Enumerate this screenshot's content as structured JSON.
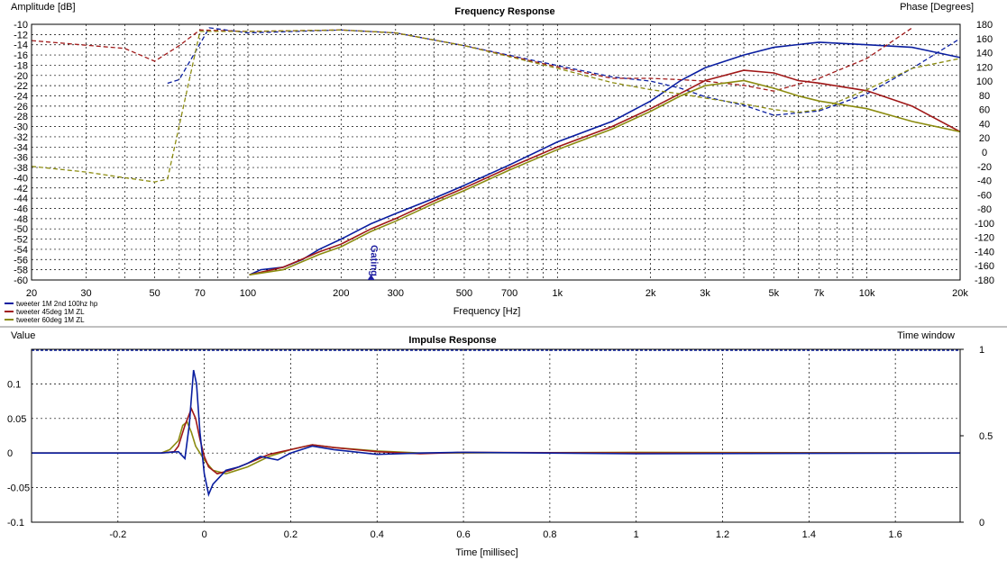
{
  "colors": {
    "series_blue": "#0a1ea0",
    "series_red": "#a01818",
    "series_olive": "#8c8c10",
    "grid": "#000000",
    "divider": "#808080",
    "gating_marker": "#1e1ea0"
  },
  "chart_data": [
    {
      "type": "line",
      "title": "Frequency Response",
      "xlabel": "Frequency [Hz]",
      "ylabel_left": "Amplitude [dB]",
      "ylabel_right": "Phase [Degrees]",
      "xscale": "log",
      "xlim": [
        20,
        20000
      ],
      "ylim_left": [
        -60,
        -10
      ],
      "ylim_right": [
        -180,
        180
      ],
      "grid": true,
      "legend_position": "bottom-left",
      "x_ticks": [
        20,
        30,
        50,
        70,
        100,
        200,
        300,
        500,
        700,
        1000,
        2000,
        3000,
        5000,
        7000,
        10000,
        20000
      ],
      "x_tick_labels": [
        "20",
        "30",
        "50",
        "70",
        "100",
        "200",
        "300",
        "500",
        "700",
        "1k",
        "2k",
        "3k",
        "5k",
        "7k",
        "10k",
        "20k"
      ],
      "y_left_ticks": [
        -10,
        -12,
        -14,
        -16,
        -18,
        -20,
        -22,
        -24,
        -26,
        -28,
        -30,
        -32,
        -34,
        -36,
        -38,
        -40,
        -42,
        -44,
        -46,
        -48,
        -50,
        -52,
        -54,
        -56,
        -58,
        -60
      ],
      "y_right_ticks": [
        180,
        160,
        140,
        120,
        100,
        80,
        60,
        40,
        20,
        0,
        -20,
        -40,
        -60,
        -80,
        -100,
        -120,
        -140,
        -160,
        -180
      ],
      "annotation": {
        "text": "Gating",
        "x": 250
      },
      "series": [
        {
          "name": "tweeter 1M 2nd 100hz hp",
          "color": "#0a1ea0",
          "amplitude": [
            [
              101,
              -59
            ],
            [
              110,
              -58
            ],
            [
              130,
              -57.5
            ],
            [
              150,
              -56
            ],
            [
              170,
              -54
            ],
            [
              200,
              -52
            ],
            [
              250,
              -49
            ],
            [
              300,
              -47
            ],
            [
              400,
              -44
            ],
            [
              500,
              -41.5
            ],
            [
              700,
              -37.5
            ],
            [
              1000,
              -33
            ],
            [
              1500,
              -29
            ],
            [
              2000,
              -25
            ],
            [
              2500,
              -21
            ],
            [
              3000,
              -18.5
            ],
            [
              4000,
              -16
            ],
            [
              5000,
              -14.5
            ],
            [
              7000,
              -13.5
            ],
            [
              10000,
              -14
            ],
            [
              14000,
              -14.5
            ],
            [
              20000,
              -16.5
            ]
          ],
          "phase": [
            [
              55,
              97
            ],
            [
              60,
              102
            ],
            [
              75,
              175
            ],
            [
              100,
              168
            ],
            [
              200,
              172
            ],
            [
              300,
              168
            ],
            [
              500,
              150
            ],
            [
              1000,
              122
            ],
            [
              1500,
              106
            ],
            [
              2000,
              100
            ],
            [
              2500,
              90
            ],
            [
              3000,
              78
            ],
            [
              4000,
              66
            ],
            [
              5000,
              52
            ],
            [
              7000,
              58
            ],
            [
              10000,
              82
            ],
            [
              14000,
              118
            ],
            [
              20000,
              160
            ]
          ],
          "impulse": [
            [
              -0.2,
              0
            ],
            [
              -0.1,
              0
            ],
            [
              -0.06,
              0.002
            ],
            [
              -0.045,
              -0.008
            ],
            [
              -0.035,
              0.04
            ],
            [
              -0.025,
              0.12
            ],
            [
              -0.018,
              0.1
            ],
            [
              -0.01,
              0.03
            ],
            [
              0.0,
              -0.03
            ],
            [
              0.01,
              -0.06
            ],
            [
              0.02,
              -0.045
            ],
            [
              0.05,
              -0.025
            ],
            [
              0.08,
              -0.02
            ],
            [
              0.1,
              -0.015
            ],
            [
              0.13,
              -0.005
            ],
            [
              0.17,
              -0.01
            ],
            [
              0.2,
              0.0
            ],
            [
              0.25,
              0.01
            ],
            [
              0.3,
              0.005
            ],
            [
              0.4,
              -0.002
            ],
            [
              0.5,
              0
            ],
            [
              0.6,
              0.001
            ],
            [
              1.0,
              -0.001
            ],
            [
              1.75,
              0
            ]
          ]
        },
        {
          "name": "tweeter 45deg 1M ZL",
          "color": "#a01818",
          "amplitude": [
            [
              101,
              -59
            ],
            [
              130,
              -57.5
            ],
            [
              170,
              -54.5
            ],
            [
              200,
              -53
            ],
            [
              250,
              -50
            ],
            [
              300,
              -48
            ],
            [
              400,
              -44.5
            ],
            [
              500,
              -42
            ],
            [
              700,
              -38
            ],
            [
              1000,
              -34
            ],
            [
              1500,
              -30
            ],
            [
              2000,
              -26.5
            ],
            [
              2500,
              -23.5
            ],
            [
              3000,
              -21
            ],
            [
              4000,
              -19
            ],
            [
              5000,
              -19.5
            ],
            [
              6000,
              -21
            ],
            [
              7000,
              -21.5
            ],
            [
              10000,
              -23
            ],
            [
              14000,
              -26
            ],
            [
              20000,
              -31
            ]
          ],
          "phase": [
            [
              20,
              157
            ],
            [
              40,
              146
            ],
            [
              50,
              128
            ],
            [
              60,
              150
            ],
            [
              70,
              172
            ],
            [
              100,
              170
            ],
            [
              200,
              172
            ],
            [
              300,
              168
            ],
            [
              500,
              150
            ],
            [
              1000,
              120
            ],
            [
              1500,
              104
            ],
            [
              2000,
              104
            ],
            [
              2500,
              102
            ],
            [
              3000,
              100
            ],
            [
              4000,
              94
            ],
            [
              5000,
              86
            ],
            [
              7000,
              104
            ],
            [
              10000,
              132
            ],
            [
              14000,
              175
            ]
          ],
          "impulse": [
            [
              -0.2,
              0
            ],
            [
              -0.1,
              0
            ],
            [
              -0.07,
              0.002
            ],
            [
              -0.06,
              0.01
            ],
            [
              -0.045,
              0.04
            ],
            [
              -0.03,
              0.064
            ],
            [
              -0.02,
              0.05
            ],
            [
              -0.01,
              0.02
            ],
            [
              0.0,
              -0.005
            ],
            [
              0.01,
              -0.02
            ],
            [
              0.03,
              -0.03
            ],
            [
              0.06,
              -0.025
            ],
            [
              0.1,
              -0.015
            ],
            [
              0.15,
              -0.002
            ],
            [
              0.2,
              0.005
            ],
            [
              0.25,
              0.012
            ],
            [
              0.3,
              0.008
            ],
            [
              0.4,
              0.002
            ],
            [
              0.5,
              -0.001
            ],
            [
              0.6,
              0.001
            ],
            [
              1.0,
              0
            ],
            [
              1.75,
              0
            ]
          ]
        },
        {
          "name": "tweeter 60deg 1M ZL",
          "color": "#8c8c10",
          "amplitude": [
            [
              101,
              -59
            ],
            [
              130,
              -58
            ],
            [
              170,
              -55
            ],
            [
              200,
              -53.5
            ],
            [
              250,
              -50.5
            ],
            [
              300,
              -48.5
            ],
            [
              400,
              -45
            ],
            [
              500,
              -42.5
            ],
            [
              700,
              -38.5
            ],
            [
              1000,
              -34.5
            ],
            [
              1500,
              -30.5
            ],
            [
              2000,
              -27
            ],
            [
              2500,
              -24
            ],
            [
              3000,
              -22
            ],
            [
              4000,
              -21
            ],
            [
              5000,
              -22.5
            ],
            [
              6000,
              -24
            ],
            [
              7000,
              -25
            ],
            [
              10000,
              -26.5
            ],
            [
              14000,
              -29
            ],
            [
              20000,
              -31
            ]
          ],
          "phase": [
            [
              20,
              -20
            ],
            [
              30,
              -28
            ],
            [
              40,
              -36
            ],
            [
              50,
              -42
            ],
            [
              55,
              -38
            ],
            [
              70,
              170
            ],
            [
              100,
              170
            ],
            [
              200,
              172
            ],
            [
              300,
              168
            ],
            [
              500,
              150
            ],
            [
              1000,
              118
            ],
            [
              1500,
              98
            ],
            [
              2000,
              88
            ],
            [
              2500,
              82
            ],
            [
              3000,
              76
            ],
            [
              4000,
              68
            ],
            [
              5000,
              60
            ],
            [
              6000,
              56
            ],
            [
              7000,
              60
            ],
            [
              10000,
              88
            ],
            [
              14000,
              118
            ],
            [
              20000,
              132
            ]
          ],
          "impulse": [
            [
              -0.2,
              0
            ],
            [
              -0.1,
              0
            ],
            [
              -0.08,
              0.005
            ],
            [
              -0.06,
              0.018
            ],
            [
              -0.05,
              0.04
            ],
            [
              -0.04,
              0.045
            ],
            [
              -0.03,
              0.03
            ],
            [
              -0.02,
              0.01
            ],
            [
              0.0,
              -0.01
            ],
            [
              0.02,
              -0.025
            ],
            [
              0.05,
              -0.03
            ],
            [
              0.1,
              -0.02
            ],
            [
              0.15,
              -0.005
            ],
            [
              0.2,
              0.005
            ],
            [
              0.25,
              0.012
            ],
            [
              0.3,
              0.008
            ],
            [
              0.4,
              0.003
            ],
            [
              0.5,
              0
            ],
            [
              1.0,
              0.001
            ],
            [
              1.75,
              0
            ]
          ]
        }
      ]
    },
    {
      "type": "line",
      "title": "Impulse Response",
      "xlabel": "Time [millisec]",
      "ylabel_left": "Value",
      "ylabel_right": "Time window",
      "xlim": [
        -0.4,
        1.75
      ],
      "ylim_left": [
        -0.1,
        0.15
      ],
      "ylim_right": [
        0,
        1
      ],
      "grid": true,
      "x_ticks": [
        -0.2,
        0,
        0.2,
        0.4,
        0.6,
        0.8,
        1,
        1.2,
        1.4,
        1.6
      ],
      "x_tick_labels": [
        "-0.2",
        "0",
        "0.2",
        "0.4",
        "0.6",
        "0.8",
        "1",
        "1.2",
        "1.4",
        "1.6"
      ],
      "y_left_ticks": [
        0.1,
        0.05,
        0,
        -0.05,
        -0.1
      ],
      "y_left_tick_labels": [
        "0.1",
        "0.05",
        "0",
        "-0.05",
        "-0.1"
      ],
      "y_right_ticks": [
        1,
        0.5,
        0
      ],
      "y_right_tick_labels": [
        "1",
        "0.5",
        "0"
      ],
      "time_window": {
        "value": 1,
        "color": "#0a1ea0"
      }
    }
  ]
}
